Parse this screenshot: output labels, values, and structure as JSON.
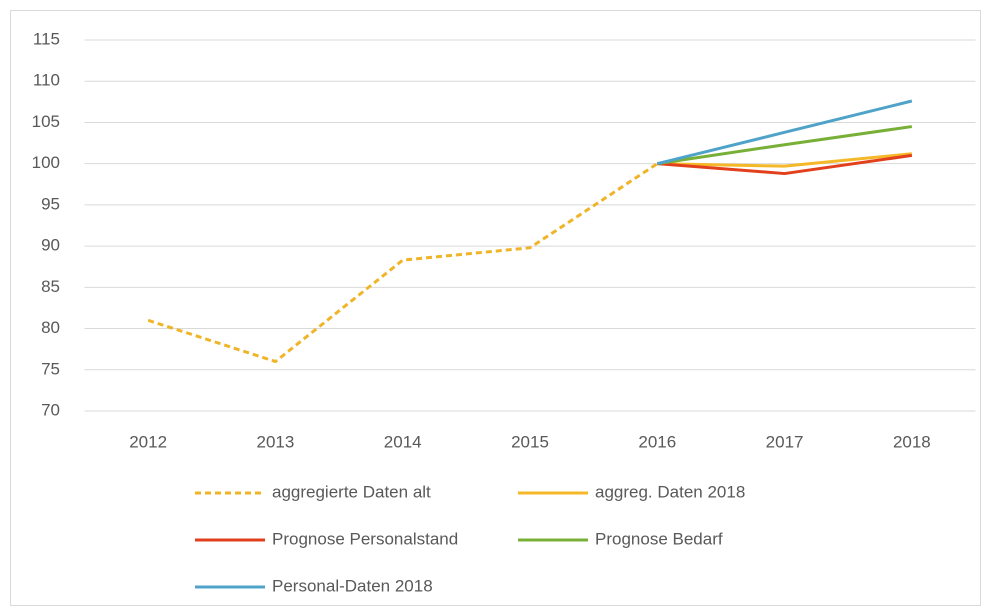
{
  "chart_data": {
    "type": "line",
    "categories": [
      "2012",
      "2013",
      "2014",
      "2015",
      "2016",
      "2017",
      "2018"
    ],
    "series": [
      {
        "name": "aggregierte Daten alt",
        "color": "#f0b428",
        "line_style": "dashed",
        "values": [
          81,
          76,
          88.3,
          89.8,
          100,
          null,
          null
        ]
      },
      {
        "name": "aggreg. Daten 2018",
        "color": "#f5b829",
        "line_style": "solid",
        "values": [
          null,
          null,
          null,
          null,
          100,
          99.7,
          101.2
        ]
      },
      {
        "name": "Prognose Personalstand",
        "color": "#e2401c",
        "line_style": "solid",
        "values": [
          null,
          null,
          null,
          null,
          100,
          98.8,
          101
        ]
      },
      {
        "name": "Prognose Bedarf",
        "color": "#78b037",
        "line_style": "solid",
        "values": [
          null,
          null,
          null,
          null,
          100,
          102.3,
          104.5
        ]
      },
      {
        "name": "Personal-Daten 2018",
        "color": "#4fa3c8",
        "line_style": "solid",
        "values": [
          null,
          null,
          null,
          null,
          100,
          103.8,
          107.6
        ]
      }
    ],
    "ylim": [
      70,
      115
    ],
    "yticks": [
      70,
      75,
      80,
      85,
      90,
      95,
      100,
      105,
      110,
      115
    ],
    "grid": true
  }
}
